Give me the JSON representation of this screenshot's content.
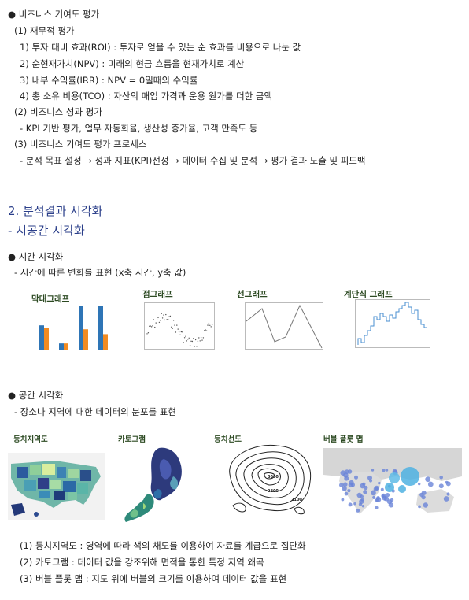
{
  "sec1": {
    "title": "●  비즈니스 기여도 평가",
    "h1": "(1) 재무적 평가",
    "items": [
      "1) 투자 대비 효과(ROI) : 투자로 얻을 수 있는 순 효과를 비용으로 나눈 값",
      "2) 순현재가치(NPV) : 미래의 현금 흐름을 현재가치로 계산",
      "3) 내부 수익률(IRR) : NPV = 0일때의 수익률",
      "4) 총 소유 비용(TCO) : 자산의 매입 가격과 운용 원가를 더한 금액"
    ],
    "h2": "(2) 비즈니스 성과 평가",
    "h2_item": "- KPI 기반 평가, 업무 자동화율, 생산성 증가율, 고객 만족도 등",
    "h3": "(3) 비즈니스 기여도 평가 프로세스",
    "h3_item": "- 분석 목표 설정 → 성과 지표(KPI)선정 → 데이터 수집 및 분석 → 평가 결과 도출 및 피드백"
  },
  "sec2": {
    "title": "2. 분석결과 시각화",
    "subtitle": "- 시공간 시각화"
  },
  "time": {
    "title": "●  시간 시각화",
    "desc": "- 시간에 따른 변화를 표현 (x축 시간, y축 값)",
    "charts": [
      "막대그래프",
      "점그래프",
      "선그래프",
      "계단식 그래프"
    ]
  },
  "bar_chart": {
    "colors": {
      "blue": "#2e75b6",
      "orange": "#f28b22"
    },
    "values": [
      [
        0.55,
        0.5
      ],
      [
        0.14,
        0.14
      ],
      [
        1.0,
        0.46
      ],
      [
        1.0,
        0.35
      ]
    ]
  },
  "space": {
    "title": "●  공간 시각화",
    "desc": "- 장소나 지역에 대한 데이터의 분포를 표현",
    "maps": [
      "등치지역도",
      "카토그램",
      "등치선도",
      "버블 플롯 맵"
    ],
    "contour_labels": [
      "3000",
      "2800",
      "2100"
    ],
    "notes": [
      "(1) 등치지역도 : 영역에 따라 색의 채도를 이용하여 자료를 계급으로 집단화",
      "(2) 카토그램 : 데이터 값을 강조위해 면적을 통한 특정 지역 왜곡",
      "(3) 버블 플롯 맵 : 지도 위에 버블의 크기를 이용하여 데이터 값을 표현"
    ]
  }
}
